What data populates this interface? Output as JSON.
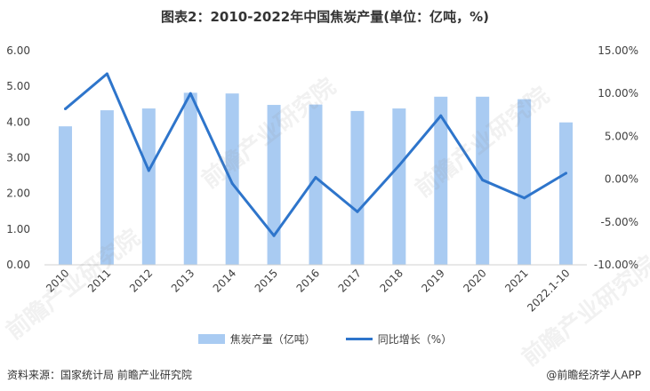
{
  "title": "图表2：2010-2022年中国焦炭产量(单位：亿吨，%)",
  "source": "资料来源：国家统计局 前瞻产业研究院",
  "brand": "@前瞻经济学人APP",
  "watermark": "前瞻产业研究院",
  "legend": {
    "bar_label": "焦炭产量（亿吨）",
    "line_label": "同比增长（%）"
  },
  "chart_data": {
    "type": "bar+line",
    "categories": [
      "2010",
      "2011",
      "2012",
      "2013",
      "2014",
      "2015",
      "2016",
      "2017",
      "2018",
      "2019",
      "2020",
      "2021",
      "2022.1-10"
    ],
    "series": [
      {
        "name": "焦炭产量（亿吨）",
        "type": "bar",
        "axis": "left",
        "values": [
          3.88,
          4.33,
          4.38,
          4.82,
          4.8,
          4.48,
          4.49,
          4.31,
          4.38,
          4.71,
          4.71,
          4.64,
          3.99
        ]
      },
      {
        "name": "同比增长（%）",
        "type": "line",
        "axis": "right",
        "values": [
          8.2,
          12.3,
          1.0,
          10.0,
          -0.5,
          -6.6,
          0.2,
          -3.8,
          1.6,
          7.4,
          -0.1,
          -2.2,
          0.7
        ]
      }
    ],
    "y_left": {
      "min": 0,
      "max": 6,
      "step": 1,
      "tick_labels": [
        "0.00",
        "1.00",
        "2.00",
        "3.00",
        "4.00",
        "5.00",
        "6.00"
      ]
    },
    "y_right": {
      "min": -10,
      "max": 15,
      "step": 5,
      "tick_labels": [
        "-10.00%",
        "-5.00%",
        "0.00%",
        "5.00%",
        "10.00%",
        "15.00%"
      ]
    },
    "grid": false,
    "legend_position": "bottom",
    "colors": {
      "bar": "#a9cbf2",
      "line": "#2e75cb"
    }
  }
}
